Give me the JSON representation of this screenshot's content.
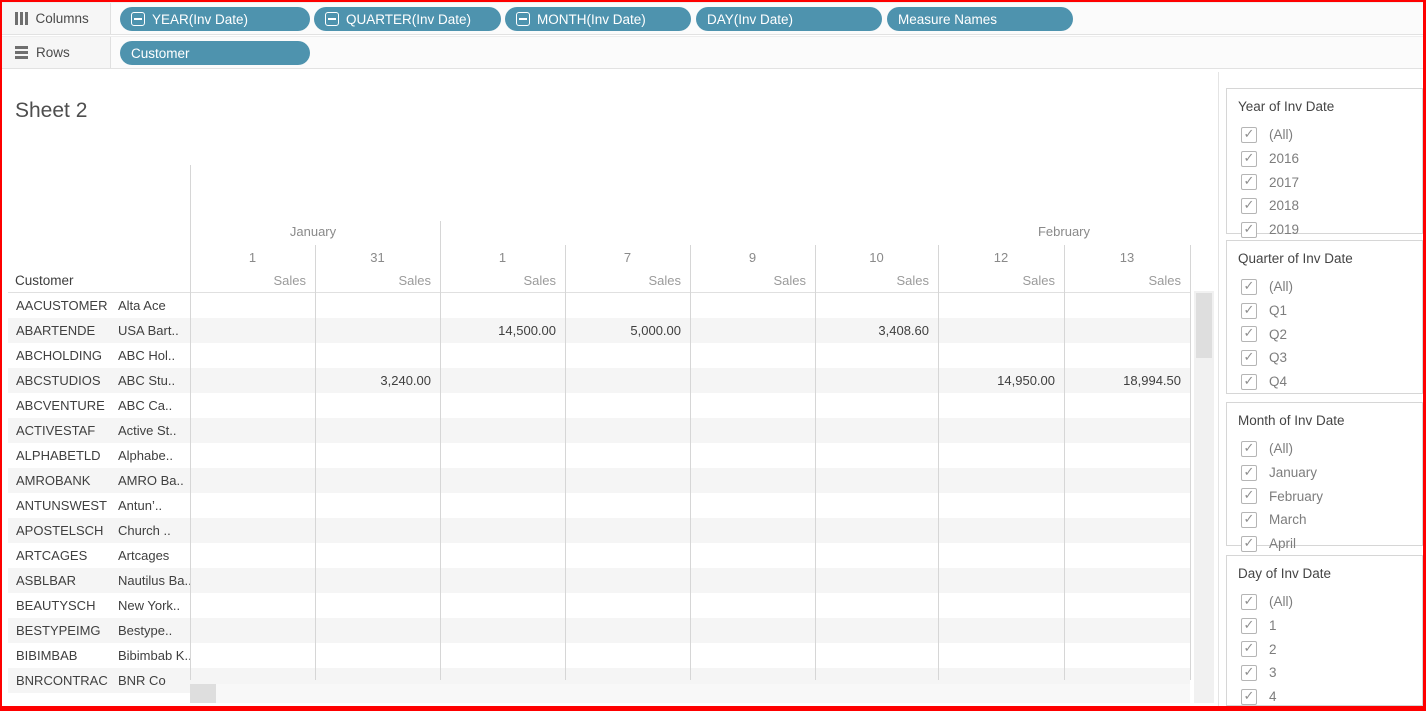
{
  "shelves": {
    "columns": {
      "label": "Columns",
      "pills": [
        {
          "label": "YEAR(Inv Date)",
          "collapse_icon": true
        },
        {
          "label": "QUARTER(Inv Date)",
          "collapse_icon": true
        },
        {
          "label": "MONTH(Inv Date)",
          "collapse_icon": true
        },
        {
          "label": "DAY(Inv Date)",
          "collapse_icon": false
        },
        {
          "label": "Measure Names",
          "collapse_icon": false
        }
      ]
    },
    "rows": {
      "label": "Rows",
      "pills": [
        {
          "label": "Customer",
          "collapse_icon": false
        }
      ]
    }
  },
  "sheet": {
    "title": "Sheet 2"
  },
  "table": {
    "corner_label": "Customer",
    "measure_label": "Sales",
    "month_headers": [
      "January",
      "February"
    ],
    "day_headers": [
      "1",
      "31",
      "1",
      "7",
      "9",
      "10",
      "12",
      "13"
    ],
    "rows": [
      {
        "code": "AACUSTOMER",
        "name": "Alta Ace",
        "values": [
          "",
          "",
          "",
          "",
          "",
          "",
          "",
          ""
        ]
      },
      {
        "code": "ABARTENDE",
        "name": "USA Bart..",
        "values": [
          "",
          "",
          "14,500.00",
          "5,000.00",
          "",
          "3,408.60",
          "",
          ""
        ]
      },
      {
        "code": "ABCHOLDING",
        "name": "ABC Hol..",
        "values": [
          "",
          "",
          "",
          "",
          "",
          "",
          "",
          ""
        ]
      },
      {
        "code": "ABCSTUDIOS",
        "name": "ABC Stu..",
        "values": [
          "",
          "3,240.00",
          "",
          "",
          "",
          "",
          "14,950.00",
          "18,994.50"
        ]
      },
      {
        "code": "ABCVENTURE",
        "name": "ABC Ca..",
        "values": [
          "",
          "",
          "",
          "",
          "",
          "",
          "",
          ""
        ]
      },
      {
        "code": "ACTIVESTAF",
        "name": "Active St..",
        "values": [
          "",
          "",
          "",
          "",
          "",
          "",
          "",
          ""
        ]
      },
      {
        "code": "ALPHABETLD",
        "name": "Alphabe..",
        "values": [
          "",
          "",
          "",
          "",
          "",
          "",
          "",
          ""
        ]
      },
      {
        "code": "AMROBANK",
        "name": "AMRO Ba..",
        "values": [
          "",
          "",
          "",
          "",
          "",
          "",
          "",
          ""
        ]
      },
      {
        "code": "ANTUNSWEST",
        "name": "Antun’..",
        "values": [
          "",
          "",
          "",
          "",
          "",
          "",
          "",
          ""
        ]
      },
      {
        "code": "APOSTELSCH",
        "name": "Church ..",
        "values": [
          "",
          "",
          "",
          "",
          "",
          "",
          "",
          ""
        ]
      },
      {
        "code": "ARTCAGES",
        "name": "Artcages",
        "values": [
          "",
          "",
          "",
          "",
          "",
          "",
          "",
          ""
        ]
      },
      {
        "code": "ASBLBAR",
        "name": "Nautilus Ba..",
        "values": [
          "",
          "",
          "",
          "",
          "",
          "",
          "",
          ""
        ]
      },
      {
        "code": "BEAUTYSCH",
        "name": "New York..",
        "values": [
          "",
          "",
          "",
          "",
          "",
          "",
          "",
          ""
        ]
      },
      {
        "code": "BESTYPEIMG",
        "name": "Bestype..",
        "values": [
          "",
          "",
          "",
          "",
          "",
          "",
          "",
          ""
        ]
      },
      {
        "code": "BIBIMBAB",
        "name": "Bibimbab K..",
        "values": [
          "",
          "",
          "",
          "",
          "",
          "",
          "",
          ""
        ]
      },
      {
        "code": "BNRCONTRAC",
        "name": "BNR Co",
        "values": [
          "",
          "",
          "",
          "",
          "",
          "",
          "",
          ""
        ]
      }
    ]
  },
  "filters": [
    {
      "title": "Year of Inv Date",
      "all_checked": true,
      "items": [
        "(All)",
        "2016",
        "2017",
        "2018",
        "2019"
      ]
    },
    {
      "title": "Quarter of Inv Date",
      "all_checked": true,
      "items": [
        "(All)",
        "Q1",
        "Q2",
        "Q3",
        "Q4"
      ]
    },
    {
      "title": "Month of Inv Date",
      "all_checked": true,
      "items": [
        "(All)",
        "January",
        "February",
        "March",
        "April"
      ]
    },
    {
      "title": "Day of Inv Date",
      "all_checked": true,
      "items": [
        "(All)",
        "1",
        "2",
        "3",
        "4"
      ]
    }
  ],
  "colors": {
    "pill": "#4E93AE",
    "row_band": "#F5F5F5",
    "frame": "#FE0000",
    "gridline": "#D6D6D6"
  }
}
